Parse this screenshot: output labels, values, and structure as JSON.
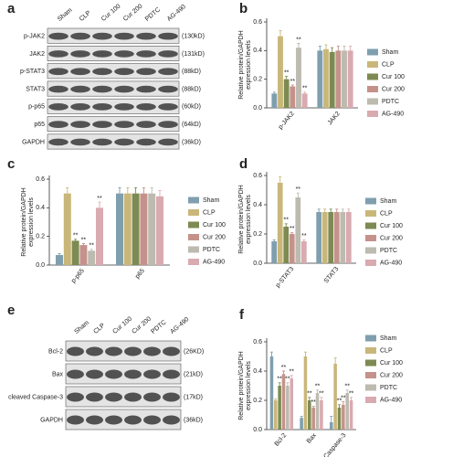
{
  "blots": [
    {
      "label": "a",
      "lanes": [
        "Sham",
        "CLP",
        "Cur 100",
        "Cur 200",
        "PDTC",
        "AG-490"
      ],
      "rows": [
        {
          "name": "p-JAK2",
          "size": "(130kD)"
        },
        {
          "name": "JAK2",
          "size": "(131kD)"
        },
        {
          "name": "p-STAT3",
          "size": "(88kD)"
        },
        {
          "name": "STAT3",
          "size": "(88kD)"
        },
        {
          "name": "p-p65",
          "size": "(60kD)"
        },
        {
          "name": "p65",
          "size": "(64kD)"
        },
        {
          "name": "GAPDH",
          "size": "(36kD)"
        }
      ]
    },
    {
      "label": "e",
      "lanes": [
        "Sham",
        "CLP",
        "Cur 100",
        "Cur 200",
        "PDTC",
        "AG-490"
      ],
      "rows": [
        {
          "name": "Bcl-2",
          "size": "(26KD)"
        },
        {
          "name": "Bax",
          "size": "(21kD)"
        },
        {
          "name": "cleaved Caspase-3",
          "size": "(17kD)"
        },
        {
          "name": "GAPDH",
          "size": "(36kD)"
        }
      ]
    }
  ],
  "chart_data": [
    {
      "type": "bar",
      "label": "b",
      "ylabel": [
        "Relative protein/GAPDH",
        "expression levels"
      ],
      "categories": [
        "p-JAK2",
        "JAK2"
      ],
      "ylim": [
        0,
        0.6
      ],
      "yticks": [
        {
          "value": 0,
          "label": "0.0"
        },
        0.2,
        0.4,
        0.6
      ],
      "series": [
        {
          "name": "Sham",
          "color": "#7f9fae",
          "values": [
            0.1,
            0.4
          ],
          "errors": [
            0.01,
            0.03
          ],
          "significance": [
            null,
            null
          ]
        },
        {
          "name": "CLP",
          "color": "#c9b77a",
          "values": [
            0.5,
            0.41
          ],
          "errors": [
            0.04,
            0.03
          ],
          "significance": [
            null,
            null
          ]
        },
        {
          "name": "Cur 100",
          "color": "#7d8a52",
          "values": [
            0.2,
            0.39
          ],
          "errors": [
            0.02,
            0.03
          ],
          "significance": [
            "**",
            null
          ]
        },
        {
          "name": "Cur 200",
          "color": "#c4928a",
          "values": [
            0.15,
            0.4
          ],
          "errors": [
            0.01,
            0.03
          ],
          "significance": [
            "**",
            null
          ]
        },
        {
          "name": "PDTC",
          "color": "#bdbab0",
          "values": [
            0.42,
            0.4
          ],
          "errors": [
            0.03,
            0.03
          ],
          "significance": [
            "**",
            null
          ]
        },
        {
          "name": "AG-490",
          "color": "#d9aab0",
          "values": [
            0.1,
            0.4
          ],
          "errors": [
            0.01,
            0.03
          ],
          "significance": [
            "**",
            null
          ]
        }
      ]
    },
    {
      "type": "bar",
      "label": "c",
      "ylabel": [
        "Relative protein/GAPDH",
        "expression levels"
      ],
      "categories": [
        "p-p65",
        "p65"
      ],
      "ylim": [
        0,
        0.6
      ],
      "yticks": [
        {
          "value": 0,
          "label": "0.0"
        },
        0.2,
        0.4,
        0.6
      ],
      "series": [
        {
          "name": "Sham",
          "color": "#7f9fae",
          "values": [
            0.07,
            0.5
          ],
          "errors": [
            0.01,
            0.04
          ],
          "significance": [
            null,
            null
          ]
        },
        {
          "name": "CLP",
          "color": "#c9b77a",
          "values": [
            0.5,
            0.5
          ],
          "errors": [
            0.04,
            0.04
          ],
          "significance": [
            null,
            null
          ]
        },
        {
          "name": "Cur 100",
          "color": "#7d8a52",
          "values": [
            0.17,
            0.5
          ],
          "errors": [
            0.01,
            0.04
          ],
          "significance": [
            "**",
            null
          ]
        },
        {
          "name": "Cur 200",
          "color": "#c4928a",
          "values": [
            0.14,
            0.5
          ],
          "errors": [
            0.01,
            0.04
          ],
          "significance": [
            "**",
            null
          ]
        },
        {
          "name": "PDTC",
          "color": "#bdbab0",
          "values": [
            0.1,
            0.5
          ],
          "errors": [
            0.01,
            0.04
          ],
          "significance": [
            "**",
            null
          ]
        },
        {
          "name": "AG-490",
          "color": "#d9aab0",
          "values": [
            0.4,
            0.48
          ],
          "errors": [
            0.04,
            0.04
          ],
          "significance": [
            "**",
            null
          ]
        }
      ]
    },
    {
      "type": "bar",
      "label": "d",
      "ylabel": [
        "Relative protein/GAPDH",
        "expression levels"
      ],
      "categories": [
        "p-STAT3",
        "STAT3"
      ],
      "ylim": [
        0,
        0.6
      ],
      "yticks": [
        {
          "value": 0,
          "label": "0.0"
        },
        0.2,
        0.4,
        0.6
      ],
      "series": [
        {
          "name": "Sham",
          "color": "#7f9fae",
          "values": [
            0.15,
            0.35
          ],
          "errors": [
            0.01,
            0.02
          ],
          "significance": [
            null,
            null
          ]
        },
        {
          "name": "CLP",
          "color": "#c9b77a",
          "values": [
            0.55,
            0.35
          ],
          "errors": [
            0.04,
            0.02
          ],
          "significance": [
            null,
            null
          ]
        },
        {
          "name": "Cur 100",
          "color": "#7d8a52",
          "values": [
            0.25,
            0.35
          ],
          "errors": [
            0.02,
            0.02
          ],
          "significance": [
            "**",
            null
          ]
        },
        {
          "name": "Cur 200",
          "color": "#c4928a",
          "values": [
            0.2,
            0.35
          ],
          "errors": [
            0.01,
            0.02
          ],
          "significance": [
            "**",
            null
          ]
        },
        {
          "name": "PDTC",
          "color": "#bdbab0",
          "values": [
            0.45,
            0.35
          ],
          "errors": [
            0.03,
            0.02
          ],
          "significance": [
            "**",
            null
          ]
        },
        {
          "name": "AG-490",
          "color": "#d9aab0",
          "values": [
            0.15,
            0.35
          ],
          "errors": [
            0.01,
            0.02
          ],
          "significance": [
            "**",
            null
          ]
        }
      ]
    },
    {
      "type": "bar",
      "label": "f",
      "ylabel": [
        "Relative protein/GAPDH",
        "expression levels"
      ],
      "categories": [
        "Bcl-2",
        "Bax",
        "cleaved Caspase-3"
      ],
      "ylim": [
        0,
        0.6
      ],
      "yticks": [
        {
          "value": 0,
          "label": "0.0"
        },
        0.2,
        0.4,
        0.6
      ],
      "series": [
        {
          "name": "Sham",
          "color": "#7f9fae",
          "values": [
            0.5,
            0.08,
            0.05
          ],
          "errors": [
            0.03,
            0.01,
            0.04
          ],
          "significance": [
            null,
            null,
            null
          ]
        },
        {
          "name": "CLP",
          "color": "#c9b77a",
          "values": [
            0.2,
            0.5,
            0.45
          ],
          "errors": [
            0.01,
            0.03,
            0.04
          ],
          "significance": [
            null,
            null,
            null
          ]
        },
        {
          "name": "Cur 100",
          "color": "#7d8a52",
          "values": [
            0.3,
            0.2,
            0.15
          ],
          "errors": [
            0.02,
            0.02,
            0.02
          ],
          "significance": [
            "**",
            "**",
            "**"
          ]
        },
        {
          "name": "Cur 200",
          "color": "#c4928a",
          "values": [
            0.38,
            0.15,
            0.17
          ],
          "errors": [
            0.02,
            0.01,
            0.02
          ],
          "significance": [
            "**",
            "**",
            "**"
          ]
        },
        {
          "name": "PDTC",
          "color": "#bdbab0",
          "values": [
            0.3,
            0.25,
            0.25
          ],
          "errors": [
            0.02,
            0.02,
            0.02
          ],
          "significance": [
            "**",
            "**",
            "**"
          ]
        },
        {
          "name": "AG-490",
          "color": "#d9aab0",
          "values": [
            0.35,
            0.2,
            0.2
          ],
          "errors": [
            0.02,
            0.02,
            0.02
          ],
          "significance": [
            "**",
            "**",
            "**"
          ]
        }
      ]
    }
  ]
}
